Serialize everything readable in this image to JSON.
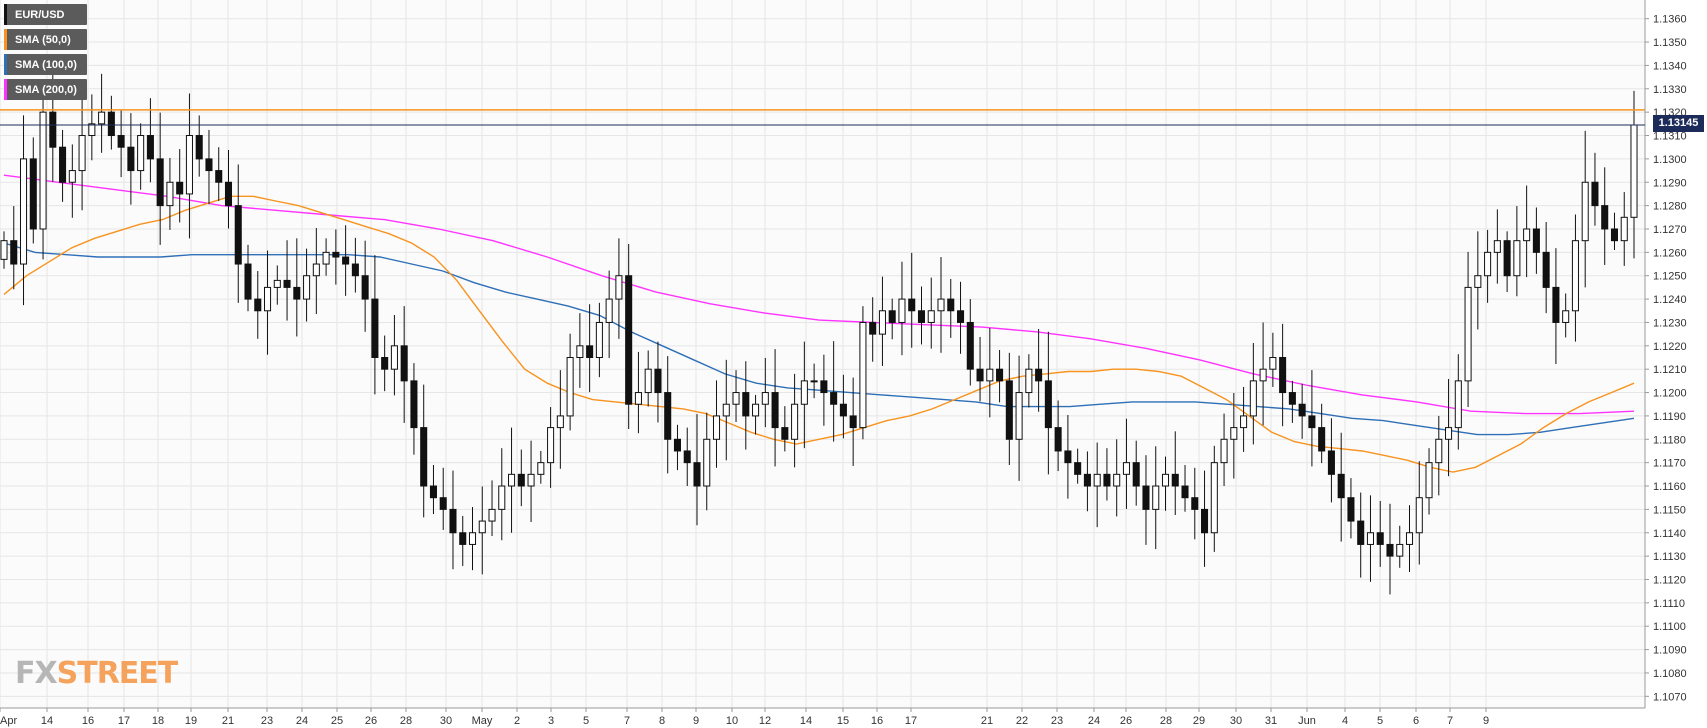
{
  "chart_data": {
    "type": "candlestick",
    "instrument": "EUR/USD",
    "legend": [
      {
        "label": "EUR/USD",
        "color": "#000000"
      },
      {
        "label": "SMA (50,0)",
        "color": "#f7931e"
      },
      {
        "label": "SMA (100,0)",
        "color": "#2e6fb7"
      },
      {
        "label": "SMA (200,0)",
        "color": "#ff33ff"
      }
    ],
    "ylim": [
      1.1065,
      1.1368
    ],
    "y_ticks": [
      "1.1070",
      "1.1080",
      "1.1090",
      "1.1100",
      "1.1110",
      "1.1120",
      "1.1130",
      "1.1140",
      "1.1150",
      "1.1160",
      "1.1170",
      "1.1180",
      "1.1190",
      "1.1200",
      "1.1210",
      "1.1220",
      "1.1230",
      "1.1240",
      "1.1250",
      "1.1260",
      "1.1270",
      "1.1280",
      "1.1290",
      "1.1300",
      "1.1310",
      "1.1320",
      "1.1330",
      "1.1340",
      "1.1350",
      "1.1360"
    ],
    "x_ticks": [
      "Apr",
      "14",
      "16",
      "17",
      "18",
      "19",
      "21",
      "23",
      "24",
      "25",
      "26",
      "28",
      "30",
      "May",
      "2",
      "3",
      "5",
      "7",
      "8",
      "9",
      "10",
      "12",
      "14",
      "15",
      "16",
      "17",
      "21",
      "22",
      "23",
      "24",
      "26",
      "28",
      "29",
      "30",
      "31",
      "Jun",
      "4",
      "5",
      "6",
      "7",
      "9"
    ],
    "current_price": "1.13145",
    "current_price_value": 1.13145,
    "resistance_level": 1.1321,
    "candle_data": [
      1.1265,
      1.1255,
      1.13,
      1.127,
      1.132,
      1.1305,
      1.129,
      1.1295,
      1.131,
      1.1315,
      1.132,
      1.131,
      1.1305,
      1.1295,
      1.131,
      1.13,
      1.128,
      1.129,
      1.1285,
      1.131,
      1.13,
      1.1295,
      1.129,
      1.128,
      1.1255,
      1.124,
      1.1235,
      1.1245,
      1.1248,
      1.1245,
      1.124,
      1.125,
      1.1255,
      1.126,
      1.1258,
      1.1255,
      1.125,
      1.124,
      1.1215,
      1.121,
      1.122,
      1.1205,
      1.1185,
      1.116,
      1.1155,
      1.115,
      1.114,
      1.1135,
      1.114,
      1.1145,
      1.115,
      1.116,
      1.1165,
      1.116,
      1.1165,
      1.117,
      1.1185,
      1.119,
      1.1215,
      1.122,
      1.1215,
      1.123,
      1.124,
      1.125,
      1.1195,
      1.12,
      1.121,
      1.12,
      1.118,
      1.1175,
      1.117,
      1.116,
      1.118,
      1.119,
      1.1195,
      1.12,
      1.119,
      1.1195,
      1.12,
      1.1185,
      1.118,
      1.1195,
      1.1205,
      1.1205,
      1.12,
      1.1195,
      1.119,
      1.1185,
      1.123,
      1.1225,
      1.1235,
      1.123,
      1.124,
      1.1235,
      1.123,
      1.1235,
      1.124,
      1.1235,
      1.123,
      1.121,
      1.1205,
      1.121,
      1.1205,
      1.118,
      1.12,
      1.121,
      1.1205,
      1.1185,
      1.1175,
      1.117,
      1.1165,
      1.116,
      1.1165,
      1.116,
      1.1165,
      1.117,
      1.116,
      1.115,
      1.116,
      1.1165,
      1.116,
      1.1155,
      1.115,
      1.114,
      1.117,
      1.118,
      1.1185,
      1.119,
      1.1205,
      1.121,
      1.1215,
      1.12,
      1.1195,
      1.119,
      1.1185,
      1.1175,
      1.1165,
      1.1155,
      1.1145,
      1.1135,
      1.114,
      1.1135,
      1.113,
      1.1135,
      1.114,
      1.1155,
      1.117,
      1.118,
      1.1185,
      1.1205,
      1.1245,
      1.125,
      1.126,
      1.1265,
      1.125,
      1.1265,
      1.127,
      1.126,
      1.1245,
      1.123,
      1.1235,
      1.1265,
      1.129,
      1.128,
      1.127,
      1.1265,
      1.1275,
      1.13145
    ],
    "sma50_data": [
      1.1242,
      1.125,
      1.1256,
      1.1262,
      1.1266,
      1.1269,
      1.1272,
      1.1274,
      1.1278,
      1.1281,
      1.1284,
      1.1284,
      1.1282,
      1.128,
      1.1277,
      1.1274,
      1.1271,
      1.1268,
      1.1264,
      1.1258,
      1.1248,
      1.1235,
      1.1222,
      1.121,
      1.1204,
      1.12,
      1.1197,
      1.1196,
      1.1195,
      1.1194,
      1.1193,
      1.1191,
      1.1187,
      1.1183,
      1.118,
      1.1178,
      1.118,
      1.1182,
      1.1185,
      1.1188,
      1.119,
      1.1193,
      1.1197,
      1.1201,
      1.1205,
      1.1207,
      1.1208,
      1.1209,
      1.1209,
      1.121,
      1.121,
      1.1209,
      1.1207,
      1.1202,
      1.1197,
      1.119,
      1.1183,
      1.1179,
      1.1177,
      1.1176,
      1.1175,
      1.1173,
      1.1171,
      1.1168,
      1.1166,
      1.1168,
      1.1173,
      1.1178,
      1.1185,
      1.1191,
      1.1196,
      1.12,
      1.1204
    ],
    "sma100_data": [
      1.1264,
      1.126,
      1.1259,
      1.1258,
      1.1258,
      1.1258,
      1.1259,
      1.1259,
      1.1259,
      1.1259,
      1.1259,
      1.1259,
      1.1258,
      1.1255,
      1.1252,
      1.1247,
      1.1243,
      1.124,
      1.1237,
      1.1233,
      1.1226,
      1.122,
      1.1214,
      1.1208,
      1.1204,
      1.1202,
      1.1201,
      1.12,
      1.1199,
      1.1198,
      1.1197,
      1.1196,
      1.1194,
      1.1194,
      1.1194,
      1.1195,
      1.1196,
      1.1196,
      1.1196,
      1.1195,
      1.1194,
      1.1193,
      1.1191,
      1.1189,
      1.1188,
      1.1186,
      1.1184,
      1.1182,
      1.1182,
      1.1183,
      1.1185,
      1.1187,
      1.1189
    ],
    "sma200_data": [
      1.1293,
      1.129,
      1.1287,
      1.1284,
      1.128,
      1.1278,
      1.1276,
      1.1274,
      1.127,
      1.1265,
      1.1258,
      1.125,
      1.1243,
      1.1238,
      1.1234,
      1.1231,
      1.123,
      1.1229,
      1.1228,
      1.1226,
      1.1223,
      1.1219,
      1.1214,
      1.1208,
      1.1203,
      1.1199,
      1.1196,
      1.1192,
      1.1191,
      1.1191,
      1.1192
    ]
  },
  "brand": {
    "fx": "FX",
    "street": "STREET"
  }
}
